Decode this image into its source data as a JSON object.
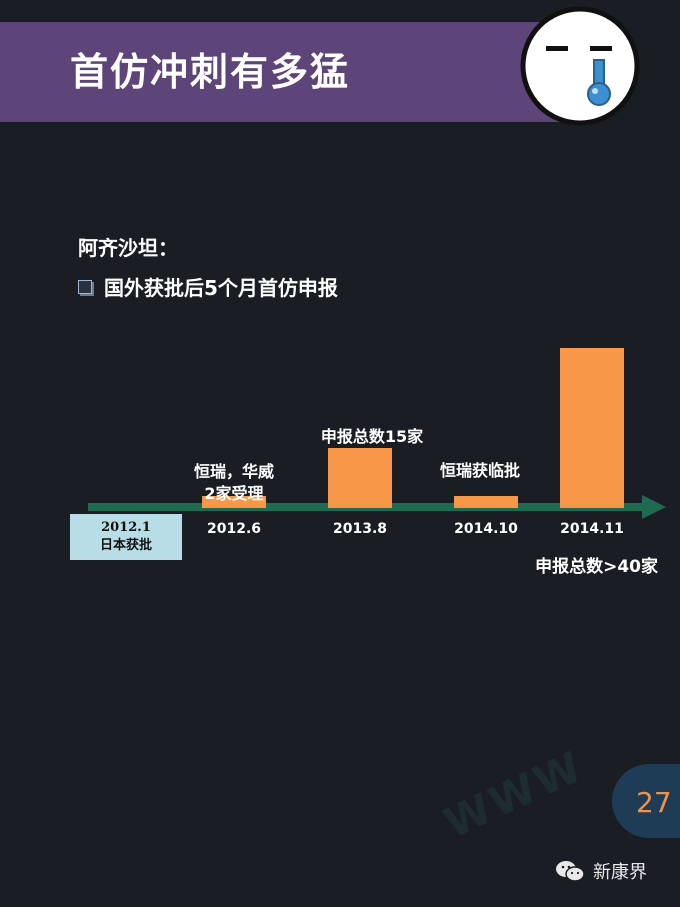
{
  "header": {
    "title": "首仿冲刺有多猛"
  },
  "subtitle": "阿齐沙坦：",
  "bullet": "国外获批后5个月首仿申报",
  "start": {
    "line1": "2012.1",
    "line2": "日本获批"
  },
  "total_note": "申报总数>40家",
  "page_number": "27",
  "footer": {
    "account": "新康界"
  },
  "watermark": "WWW",
  "colors": {
    "bar": "#f79747",
    "arrow": "#1f6b52",
    "banner": "#5e4579",
    "start_box": "#b9dde6"
  },
  "chart_data": {
    "type": "bar",
    "categories": [
      "2012.6",
      "2013.8",
      "2014.10",
      "2014.11"
    ],
    "values": [
      3,
      15,
      3,
      40
    ],
    "annotations": [
      {
        "category": "2012.6",
        "lines": [
          "恒瑞，华威",
          "2家受理"
        ]
      },
      {
        "category": "2013.8",
        "lines": [
          "申报总数15家"
        ]
      },
      {
        "category": "2014.10",
        "lines": [
          "恒瑞获临批"
        ]
      }
    ],
    "ylim": [
      0,
      45
    ],
    "grid": false,
    "xlabel": "",
    "ylabel": "",
    "title": ""
  }
}
